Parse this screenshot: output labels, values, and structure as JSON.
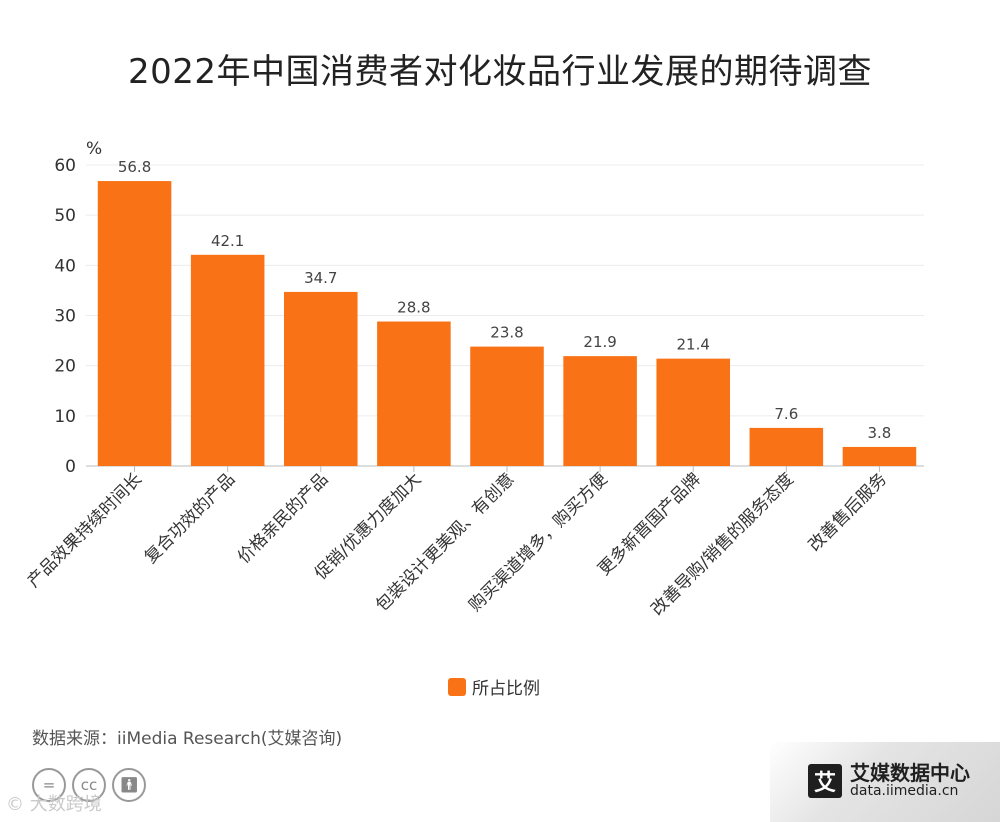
{
  "title": "2022年中国消费者对化妆品行业发展的期待调查",
  "chart_data": {
    "type": "bar",
    "title": "2022年中国消费者对化妆品行业发展的期待调查",
    "ylabel": "%",
    "xlabel": "",
    "ylim": [
      0,
      60
    ],
    "yticks": [
      0,
      10,
      20,
      30,
      40,
      50,
      60
    ],
    "grid": true,
    "legend_position": "bottom",
    "categories": [
      "产品效果持续时间长",
      "复合功效的产品",
      "价格亲民的产品",
      "促销/优惠力度加大",
      "包装设计更美观、有创意",
      "购买渠道增多，购买方便",
      "更多新晋国产品牌",
      "改善导购/销售的服务态度",
      "改善售后服务"
    ],
    "series": [
      {
        "name": "所占比例",
        "color": "#f97316",
        "values": [
          56.8,
          42.1,
          34.7,
          28.8,
          23.8,
          21.9,
          21.4,
          7.6,
          3.8
        ]
      }
    ]
  },
  "legend": {
    "label": "所占比例"
  },
  "source": "数据来源：iiMedia Research(艾媒咨询)",
  "license": {
    "icons": [
      "equals-icon",
      "cc-icon",
      "person-icon"
    ],
    "cc_text": "cc"
  },
  "watermark": "© 大数跨境",
  "brand": {
    "logo_char": "艾",
    "name": "艾媒数据中心",
    "url": "data.iimedia.cn"
  }
}
